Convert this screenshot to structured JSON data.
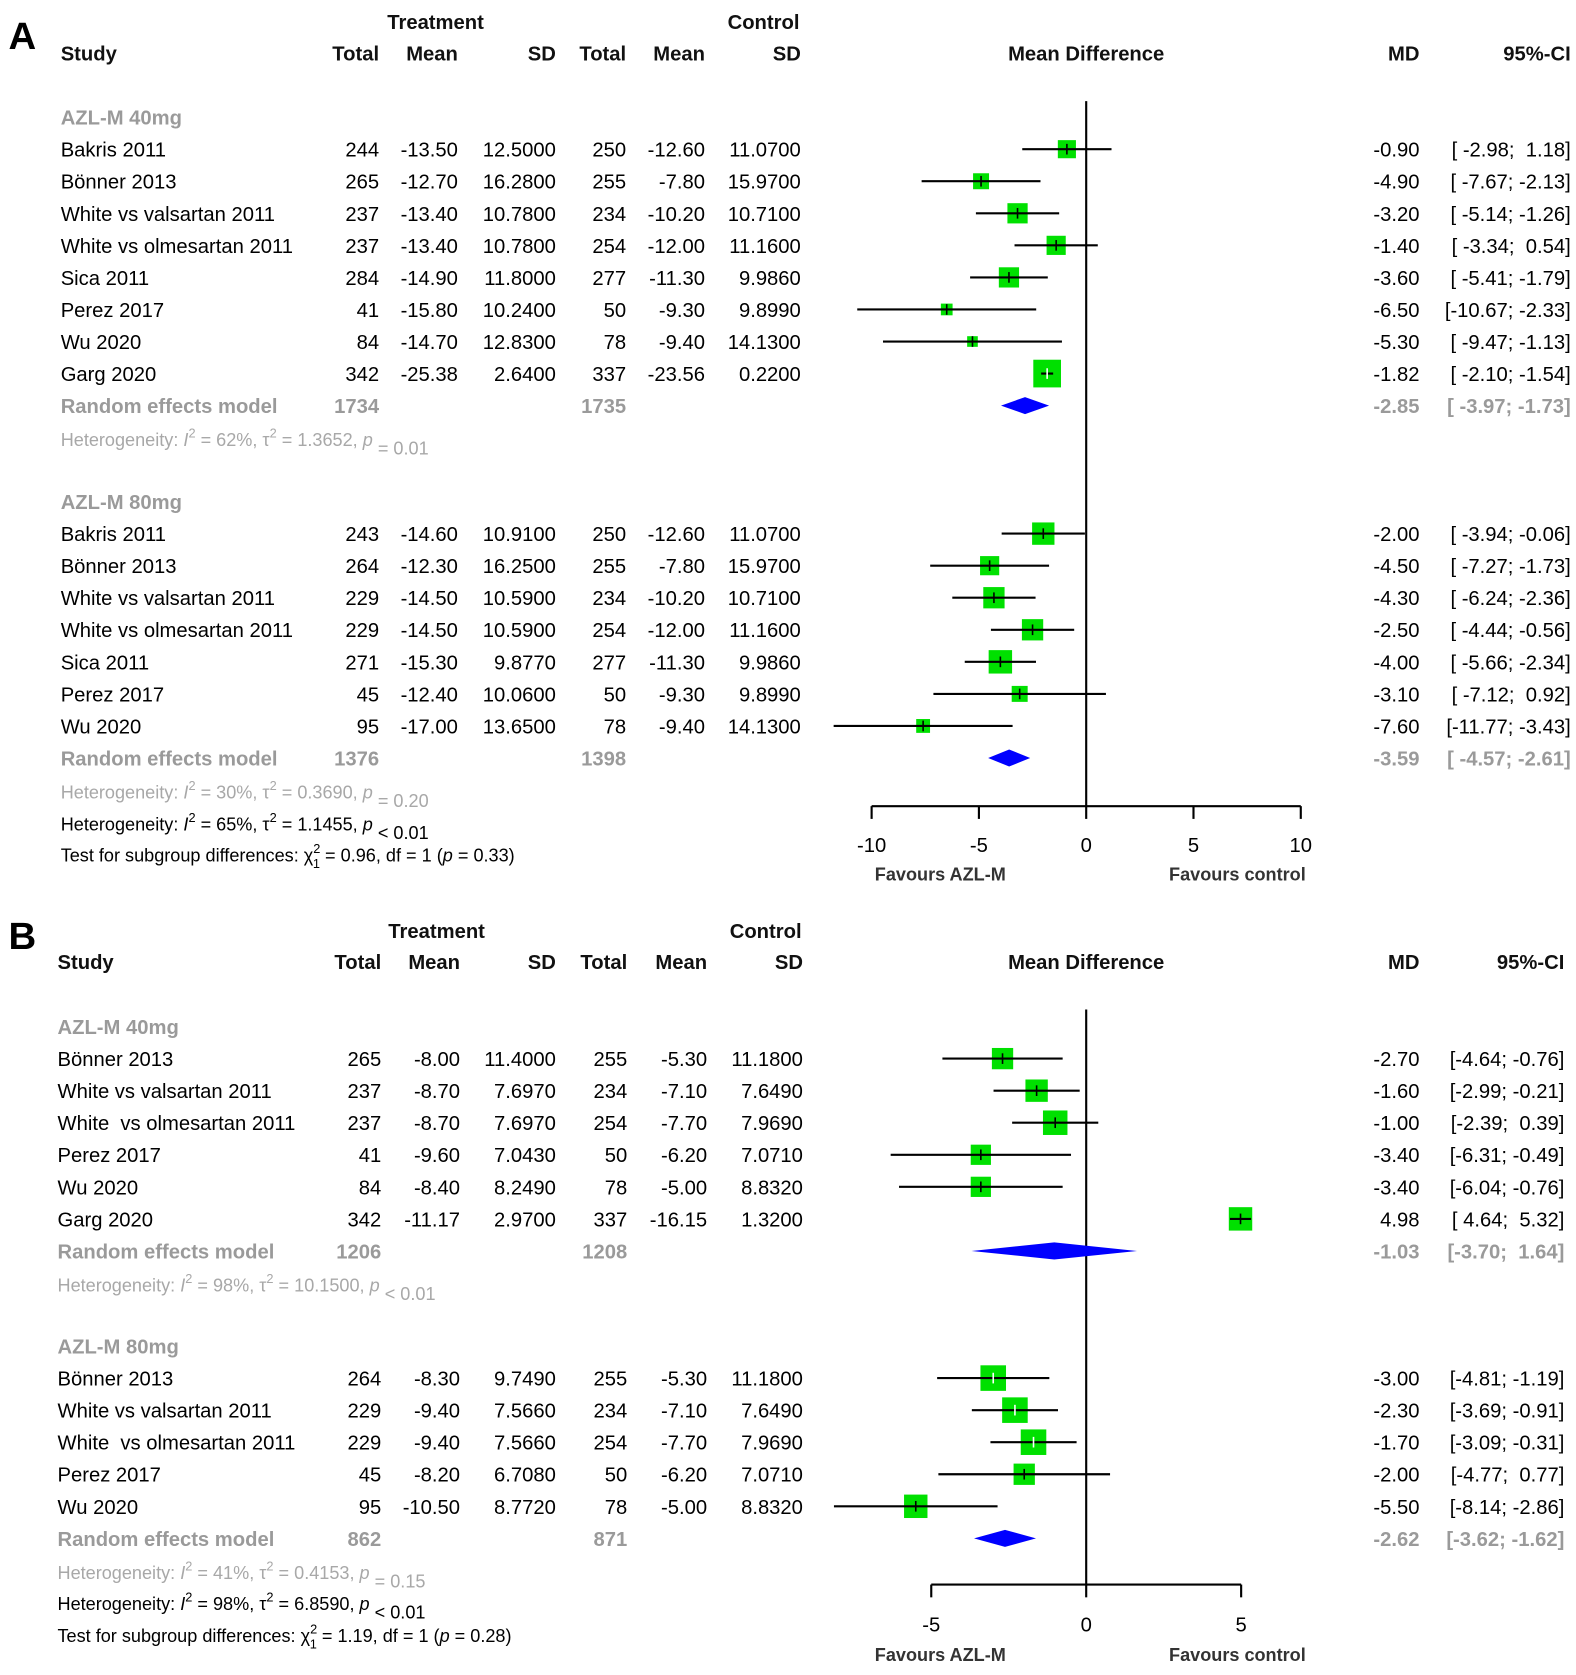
{
  "chart_data": [
    {
      "type": "forest",
      "panel_label": "A",
      "headers": {
        "treatment": "Treatment",
        "control": "Control",
        "study": "Study",
        "total": "Total",
        "mean": "Mean",
        "sd": "SD",
        "plot": "Mean Difference",
        "md": "MD",
        "ci": "95%-CI"
      },
      "xlim": [
        -10,
        10
      ],
      "ticks": [
        "-10",
        "-5",
        "0",
        "5",
        "10"
      ],
      "tick_values": [
        -10,
        -5,
        0,
        5,
        10
      ],
      "favours_left": "Favours AZL-M",
      "favours_right": "Favours control",
      "colors": {
        "square": "#00e000",
        "diamond": "#0000ff",
        "line": "#000000",
        "summary_text": "#9a9a9a"
      },
      "groups": [
        {
          "label": "AZL-M 40mg",
          "studies": [
            {
              "study": "Bakris 2011",
              "t_total": "244",
              "t_mean": "-13.50",
              "t_sd": "12.5000",
              "c_total": "250",
              "c_mean": "-12.60",
              "c_sd": "11.0700",
              "md_text": "-0.90",
              "ci_text": "[ -2.98;  1.18]",
              "md": -0.9,
              "lo": -2.98,
              "hi": 1.18,
              "weight": 17
            },
            {
              "study": "Bönner 2013",
              "t_total": "265",
              "t_mean": "-12.70",
              "t_sd": "16.2800",
              "c_total": "255",
              "c_mean": "-7.80",
              "c_sd": "15.9700",
              "md_text": "-4.90",
              "ci_text": "[ -7.67; -2.13]",
              "md": -4.9,
              "lo": -7.67,
              "hi": -2.13,
              "weight": 15
            },
            {
              "study": "White vs valsartan 2011",
              "t_total": "237",
              "t_mean": "-13.40",
              "t_sd": "10.7800",
              "c_total": "234",
              "c_mean": "-10.20",
              "c_sd": "10.7100",
              "md_text": "-3.20",
              "ci_text": "[ -5.14; -1.26]",
              "md": -3.2,
              "lo": -5.14,
              "hi": -1.26,
              "weight": 19
            },
            {
              "study": "White vs olmesartan 2011",
              "t_total": "237",
              "t_mean": "-13.40",
              "t_sd": "10.7800",
              "c_total": "254",
              "c_mean": "-12.00",
              "c_sd": "11.1600",
              "md_text": "-1.40",
              "ci_text": "[ -3.34;  0.54]",
              "md": -1.4,
              "lo": -3.34,
              "hi": 0.54,
              "weight": 18
            },
            {
              "study": "Sica 2011",
              "t_total": "284",
              "t_mean": "-14.90",
              "t_sd": "11.8000",
              "c_total": "277",
              "c_mean": "-11.30",
              "c_sd": "9.9860",
              "md_text": "-3.60",
              "ci_text": "[ -5.41; -1.79]",
              "md": -3.6,
              "lo": -5.41,
              "hi": -1.79,
              "weight": 19
            },
            {
              "study": "Perez 2017",
              "t_total": "41",
              "t_mean": "-15.80",
              "t_sd": "10.2400",
              "c_total": "50",
              "c_mean": "-9.30",
              "c_sd": "9.8990",
              "md_text": "-6.50",
              "ci_text": "[-10.67; -2.33]",
              "md": -6.5,
              "lo": -10.67,
              "hi": -2.33,
              "weight": 11
            },
            {
              "study": "Wu 2020",
              "t_total": "84",
              "t_mean": "-14.70",
              "t_sd": "12.8300",
              "c_total": "78",
              "c_mean": "-9.40",
              "c_sd": "14.1300",
              "md_text": "-5.30",
              "ci_text": "[ -9.47; -1.13]",
              "md": -5.3,
              "lo": -9.47,
              "hi": -1.13,
              "weight": 10
            },
            {
              "study": "Garg 2020",
              "t_total": "342",
              "t_mean": "-25.38",
              "t_sd": "2.6400",
              "c_total": "337",
              "c_mean": "-23.56",
              "c_sd": "0.2200",
              "md_text": "-1.82",
              "ci_text": "[ -2.10; -1.54]",
              "md": -1.82,
              "lo": -2.1,
              "hi": -1.54,
              "weight": 26
            }
          ],
          "random": {
            "label": "Random effects model",
            "t_total": "1734",
            "c_total": "1735",
            "md_text": "-2.85",
            "ci_text": "[ -3.97; -1.73]",
            "md": -2.85,
            "lo": -3.97,
            "hi": -1.73
          },
          "het": [
            "Heterogeneity: ",
            "I",
            "2",
            " = 62%, τ",
            "2",
            " = 1.3652, ",
            "p",
            " = 0.01"
          ]
        },
        {
          "label": "AZL-M 80mg",
          "studies": [
            {
              "study": "Bakris 2011",
              "t_total": "243",
              "t_mean": "-14.60",
              "t_sd": "10.9100",
              "c_total": "250",
              "c_mean": "-12.60",
              "c_sd": "11.0700",
              "md_text": "-2.00",
              "ci_text": "[ -3.94; -0.06]",
              "md": -2.0,
              "lo": -3.94,
              "hi": -0.06,
              "weight": 21
            },
            {
              "study": "Bönner 2013",
              "t_total": "264",
              "t_mean": "-12.30",
              "t_sd": "16.2500",
              "c_total": "255",
              "c_mean": "-7.80",
              "c_sd": "15.9700",
              "md_text": "-4.50",
              "ci_text": "[ -7.27; -1.73]",
              "md": -4.5,
              "lo": -7.27,
              "hi": -1.73,
              "weight": 18
            },
            {
              "study": "White vs valsartan 2011",
              "t_total": "229",
              "t_mean": "-14.50",
              "t_sd": "10.5900",
              "c_total": "234",
              "c_mean": "-10.20",
              "c_sd": "10.7100",
              "md_text": "-4.30",
              "ci_text": "[ -6.24; -2.36]",
              "md": -4.3,
              "lo": -6.24,
              "hi": -2.36,
              "weight": 20
            },
            {
              "study": "White vs olmesartan 2011",
              "t_total": "229",
              "t_mean": "-14.50",
              "t_sd": "10.5900",
              "c_total": "254",
              "c_mean": "-12.00",
              "c_sd": "11.1600",
              "md_text": "-2.50",
              "ci_text": "[ -4.44; -0.56]",
              "md": -2.5,
              "lo": -4.44,
              "hi": -0.56,
              "weight": 20
            },
            {
              "study": "Sica 2011",
              "t_total": "271",
              "t_mean": "-15.30",
              "t_sd": "9.8770",
              "c_total": "277",
              "c_mean": "-11.30",
              "c_sd": "9.9860",
              "md_text": "-4.00",
              "ci_text": "[ -5.66; -2.34]",
              "md": -4.0,
              "lo": -5.66,
              "hi": -2.34,
              "weight": 22
            },
            {
              "study": "Perez 2017",
              "t_total": "45",
              "t_mean": "-12.40",
              "t_sd": "10.0600",
              "c_total": "50",
              "c_mean": "-9.30",
              "c_sd": "9.8990",
              "md_text": "-3.10",
              "ci_text": "[ -7.12;  0.92]",
              "md": -3.1,
              "lo": -7.12,
              "hi": 0.92,
              "weight": 15
            },
            {
              "study": "Wu 2020",
              "t_total": "95",
              "t_mean": "-17.00",
              "t_sd": "13.6500",
              "c_total": "78",
              "c_mean": "-9.40",
              "c_sd": "14.1300",
              "md_text": "-7.60",
              "ci_text": "[-11.77; -3.43]",
              "md": -7.6,
              "lo": -11.77,
              "hi": -3.43,
              "weight": 13
            }
          ],
          "random": {
            "label": "Random effects model",
            "t_total": "1376",
            "c_total": "1398",
            "md_text": "-3.59",
            "ci_text": "[ -4.57; -2.61]",
            "md": -3.59,
            "lo": -4.57,
            "hi": -2.61
          },
          "het": [
            "Heterogeneity: ",
            "I",
            "2",
            " = 30%, τ",
            "2",
            " = 0.3690, ",
            "p",
            " = 0.20"
          ]
        }
      ],
      "overall_het": [
        "Heterogeneity: ",
        "I",
        "2",
        " = 65%, τ",
        "2",
        " = 1.1455, ",
        "p",
        " < 0.01"
      ],
      "subgroup_test": [
        "Test for subgroup differences: ",
        "χ",
        "2",
        "1",
        " = 0.96, df = 1 (",
        "p",
        " = 0.33)"
      ]
    },
    {
      "type": "forest",
      "panel_label": "B",
      "headers": {
        "treatment": "Treatment",
        "control": "Control",
        "study": "Study",
        "total": "Total",
        "mean": "Mean",
        "sd": "SD",
        "plot": "Mean Difference",
        "md": "MD",
        "ci": "95%-CI"
      },
      "xlim": [
        -5,
        5
      ],
      "ticks": [
        "-5",
        "0",
        "5"
      ],
      "tick_values": [
        -5,
        0,
        5
      ],
      "favours_left": "Favours AZL-M",
      "favours_right": "Favours control",
      "colors": {
        "square": "#00e000",
        "diamond": "#0000ff",
        "line": "#000000",
        "summary_text": "#9a9a9a"
      },
      "groups": [
        {
          "label": "AZL-M 40mg",
          "studies": [
            {
              "study": "Bönner 2013",
              "t_total": "265",
              "t_mean": "-8.00",
              "t_sd": "11.4000",
              "c_total": "255",
              "c_mean": "-5.30",
              "c_sd": "11.1800",
              "md_text": "-2.70",
              "ci_text": "[-4.64; -0.76]",
              "md": -2.7,
              "lo": -4.64,
              "hi": -0.76,
              "weight": 20
            },
            {
              "study": "White vs valsartan 2011",
              "t_total": "237",
              "t_mean": "-8.70",
              "t_sd": "7.6970",
              "c_total": "234",
              "c_mean": "-7.10",
              "c_sd": "7.6490",
              "md_text": "-1.60",
              "ci_text": "[-2.99; -0.21]",
              "md": -1.6,
              "lo": -2.99,
              "hi": -0.21,
              "weight": 21
            },
            {
              "study": "White  vs olmesartan 2011",
              "t_total": "237",
              "t_mean": "-8.70",
              "t_sd": "7.6970",
              "c_total": "254",
              "c_mean": "-7.70",
              "c_sd": "7.9690",
              "md_text": "-1.00",
              "ci_text": "[-2.39;  0.39]",
              "md": -1.0,
              "lo": -2.39,
              "hi": 0.39,
              "weight": 23
            },
            {
              "study": "Perez 2017",
              "t_total": "41",
              "t_mean": "-9.60",
              "t_sd": "7.0430",
              "c_total": "50",
              "c_mean": "-6.20",
              "c_sd": "7.0710",
              "md_text": "-3.40",
              "ci_text": "[-6.31; -0.49]",
              "md": -3.4,
              "lo": -6.31,
              "hi": -0.49,
              "weight": 19
            },
            {
              "study": "Wu 2020",
              "t_total": "84",
              "t_mean": "-8.40",
              "t_sd": "8.2490",
              "c_total": "78",
              "c_mean": "-5.00",
              "c_sd": "8.8320",
              "md_text": "-3.40",
              "ci_text": "[-6.04; -0.76]",
              "md": -3.4,
              "lo": -6.04,
              "hi": -0.76,
              "weight": 19
            },
            {
              "study": "Garg 2020",
              "t_total": "342",
              "t_mean": "-11.17",
              "t_sd": "2.9700",
              "c_total": "337",
              "c_mean": "-16.15",
              "c_sd": "1.3200",
              "md_text": "4.98",
              "ci_text": "[ 4.64;  5.32]",
              "md": 4.98,
              "lo": 4.64,
              "hi": 5.32,
              "weight": 22
            }
          ],
          "random": {
            "label": "Random effects model",
            "t_total": "1206",
            "c_total": "1208",
            "md_text": "-1.03",
            "ci_text": "[-3.70;  1.64]",
            "md": -1.03,
            "lo": -3.7,
            "hi": 1.64
          },
          "het": [
            "Heterogeneity: ",
            "I",
            "2",
            " = 98%, τ",
            "2",
            " = 10.1500, ",
            "p",
            " < 0.01"
          ]
        },
        {
          "label": "AZL-M 80mg",
          "studies": [
            {
              "study": "Bönner 2013",
              "t_total": "264",
              "t_mean": "-8.30",
              "t_sd": "9.7490",
              "c_total": "255",
              "c_mean": "-5.30",
              "c_sd": "11.1800",
              "md_text": "-3.00",
              "ci_text": "[-4.81; -1.19]",
              "md": -3.0,
              "lo": -4.81,
              "hi": -1.19,
              "weight": 24
            },
            {
              "study": "White vs valsartan 2011",
              "t_total": "229",
              "t_mean": "-9.40",
              "t_sd": "7.5660",
              "c_total": "234",
              "c_mean": "-7.10",
              "c_sd": "7.6490",
              "md_text": "-2.30",
              "ci_text": "[-3.69; -0.91]",
              "md": -2.3,
              "lo": -3.69,
              "hi": -0.91,
              "weight": 24
            },
            {
              "study": "White  vs olmesartan 2011",
              "t_total": "229",
              "t_mean": "-9.40",
              "t_sd": "7.5660",
              "c_total": "254",
              "c_mean": "-7.70",
              "c_sd": "7.9690",
              "md_text": "-1.70",
              "ci_text": "[-3.09; -0.31]",
              "md": -1.7,
              "lo": -3.09,
              "hi": -0.31,
              "weight": 24
            },
            {
              "study": "Perez 2017",
              "t_total": "45",
              "t_mean": "-8.20",
              "t_sd": "6.7080",
              "c_total": "50",
              "c_mean": "-6.20",
              "c_sd": "7.0710",
              "md_text": "-2.00",
              "ci_text": "[-4.77;  0.77]",
              "md": -2.0,
              "lo": -4.77,
              "hi": 0.77,
              "weight": 20
            },
            {
              "study": "Wu 2020",
              "t_total": "95",
              "t_mean": "-10.50",
              "t_sd": "8.7720",
              "c_total": "78",
              "c_mean": "-5.00",
              "c_sd": "8.8320",
              "md_text": "-5.50",
              "ci_text": "[-8.14; -2.86]",
              "md": -5.5,
              "lo": -8.14,
              "hi": -2.86,
              "weight": 22
            }
          ],
          "random": {
            "label": "Random effects model",
            "t_total": "862",
            "c_total": "871",
            "md_text": "-2.62",
            "ci_text": "[-3.62; -1.62]",
            "md": -2.62,
            "lo": -3.62,
            "hi": -1.62
          },
          "het": [
            "Heterogeneity: ",
            "I",
            "2",
            " = 41%, τ",
            "2",
            " = 0.4153, ",
            "p",
            " = 0.15"
          ]
        }
      ],
      "overall_het": [
        "Heterogeneity: ",
        "I",
        "2",
        " = 98%, τ",
        "2",
        " = 6.8590, ",
        "p",
        " < 0.01"
      ],
      "subgroup_test": [
        "Test for subgroup differences: ",
        "χ",
        "2",
        "1",
        " = 1.19, df = 1 (",
        "p",
        " = 0.28)"
      ]
    }
  ]
}
